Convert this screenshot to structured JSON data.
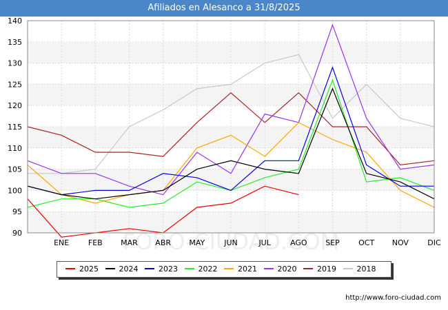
{
  "header": {
    "title": "Afiliados en Alesanco a 31/8/2025"
  },
  "watermark": "FORO-CIUDAD.COM",
  "source": "http://www.foro-ciudad.com",
  "chart_data": {
    "type": "line",
    "title": "Afiliados en Alesanco a 31/8/2025",
    "categories": [
      "",
      "ENE",
      "FEB",
      "MAR",
      "ABR",
      "MAY",
      "JUN",
      "JUL",
      "AGO",
      "SEP",
      "OCT",
      "NOV",
      "DIC"
    ],
    "ylim": [
      90,
      140
    ],
    "yticks": [
      90,
      95,
      100,
      105,
      110,
      115,
      120,
      125,
      130,
      135,
      140
    ],
    "grid": true,
    "legend_position": "bottom",
    "series": [
      {
        "name": "2025",
        "color": "#ee0000",
        "values": [
          98,
          89,
          90,
          91,
          90,
          96,
          97,
          101,
          99,
          null,
          null,
          null,
          null
        ]
      },
      {
        "name": "2024",
        "color": "#000000",
        "values": [
          101,
          99,
          98,
          99,
          100,
          105,
          107,
          105,
          104,
          124,
          104,
          102,
          98
        ]
      },
      {
        "name": "2023",
        "color": "#0000ee",
        "values": [
          101,
          99,
          100,
          100,
          104,
          103,
          100,
          107,
          107,
          129,
          106,
          101,
          101
        ]
      },
      {
        "name": "2022",
        "color": "#22ee22",
        "values": [
          96,
          98,
          98,
          96,
          97,
          102,
          100,
          103,
          105,
          126,
          102,
          103,
          100
        ]
      },
      {
        "name": "2021",
        "color": "#ffa500",
        "values": [
          106,
          99,
          97,
          99,
          100,
          110,
          113,
          108,
          116,
          112,
          109,
          100,
          96
        ]
      },
      {
        "name": "2020",
        "color": "#9933ee",
        "values": [
          107,
          104,
          104,
          101,
          99,
          109,
          104,
          118,
          116,
          139,
          117,
          105,
          106
        ]
      },
      {
        "name": "2019",
        "color": "#aa2222",
        "values": [
          115,
          113,
          109,
          109,
          108,
          116,
          123,
          116,
          123,
          115,
          115,
          106,
          107
        ]
      },
      {
        "name": "2018",
        "color": "#c8c8c8",
        "values": [
          104,
          104,
          105,
          115,
          119,
          124,
          125,
          130,
          132,
          117,
          125,
          117,
          115
        ]
      }
    ]
  }
}
